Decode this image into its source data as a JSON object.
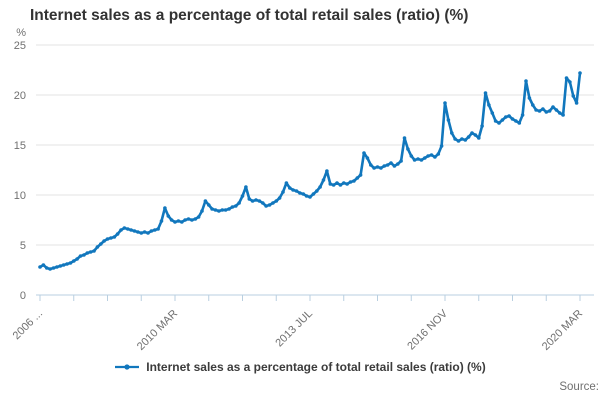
{
  "title": "Internet sales as a percentage of total retail sales (ratio) (%)",
  "source_label": "Source:",
  "legend": {
    "label": "Internet sales as a percentage of total retail sales (ratio) (%)"
  },
  "colors": {
    "line": "#1177bd",
    "grid": "#e3e3e3",
    "axis": "#b9cfe0",
    "tick_label": "#707070",
    "title": "#333333",
    "legend_text": "#3c3c3c",
    "source": "#707070",
    "background": "#ffffff"
  },
  "chart_data": {
    "type": "line",
    "title": "Internet sales as a percentage of total retail sales (ratio) (%)",
    "xlabel": "",
    "ylabel": "%",
    "ylim": [
      0,
      25
    ],
    "yticks": [
      0,
      5,
      10,
      15,
      20,
      25
    ],
    "grid": "horizontal",
    "legend_position": "bottom",
    "x_unit": "monthly observations, month index 0-160",
    "x_ticks": [
      {
        "m": 0,
        "label": "2006 ..."
      },
      {
        "m": 10
      },
      {
        "m": 20
      },
      {
        "m": 30
      },
      {
        "m": 40,
        "label": "2010 MAR"
      },
      {
        "m": 50
      },
      {
        "m": 60
      },
      {
        "m": 70
      },
      {
        "m": 80,
        "label": "2013 JUL"
      },
      {
        "m": 90
      },
      {
        "m": 100
      },
      {
        "m": 110
      },
      {
        "m": 120,
        "label": "2016 NOV"
      },
      {
        "m": 130
      },
      {
        "m": 140
      },
      {
        "m": 150
      },
      {
        "m": 160,
        "label": "2020 MAR"
      }
    ],
    "series": [
      {
        "name": "Internet sales as a percentage of total retail sales (ratio) (%)",
        "values": [
          2.8,
          3.0,
          2.7,
          2.6,
          2.7,
          2.8,
          2.9,
          3.0,
          3.1,
          3.2,
          3.4,
          3.6,
          3.9,
          4.0,
          4.2,
          4.3,
          4.4,
          4.8,
          5.1,
          5.4,
          5.6,
          5.7,
          5.8,
          6.1,
          6.5,
          6.7,
          6.6,
          6.5,
          6.4,
          6.3,
          6.2,
          6.3,
          6.2,
          6.4,
          6.5,
          6.6,
          7.4,
          8.7,
          7.9,
          7.5,
          7.3,
          7.4,
          7.3,
          7.5,
          7.6,
          7.5,
          7.6,
          7.8,
          8.4,
          9.4,
          9.0,
          8.6,
          8.5,
          8.4,
          8.5,
          8.5,
          8.6,
          8.8,
          8.9,
          9.2,
          9.9,
          10.8,
          9.6,
          9.4,
          9.5,
          9.4,
          9.2,
          8.9,
          9.0,
          9.2,
          9.4,
          9.7,
          10.3,
          11.2,
          10.7,
          10.5,
          10.4,
          10.2,
          10.1,
          9.9,
          9.8,
          10.1,
          10.4,
          10.8,
          11.5,
          12.4,
          11.1,
          11.0,
          11.2,
          11.0,
          11.2,
          11.1,
          11.3,
          11.4,
          11.7,
          12.0,
          14.2,
          13.7,
          13.0,
          12.7,
          12.8,
          12.7,
          12.9,
          13.0,
          13.2,
          12.9,
          13.1,
          13.4,
          15.7,
          14.6,
          13.9,
          13.5,
          13.6,
          13.5,
          13.7,
          13.9,
          14.0,
          13.8,
          14.1,
          14.9,
          19.2,
          17.5,
          16.2,
          15.6,
          15.4,
          15.6,
          15.5,
          15.8,
          16.2,
          16.0,
          15.7,
          16.9,
          20.2,
          19.0,
          18.2,
          17.4,
          17.2,
          17.5,
          17.8,
          17.9,
          17.6,
          17.4,
          17.2,
          18.0,
          21.4,
          19.7,
          19.0,
          18.5,
          18.4,
          18.6,
          18.3,
          18.4,
          18.8,
          18.5,
          18.2,
          18.0,
          21.7,
          21.3,
          19.9,
          19.2,
          22.2
        ]
      }
    ]
  }
}
